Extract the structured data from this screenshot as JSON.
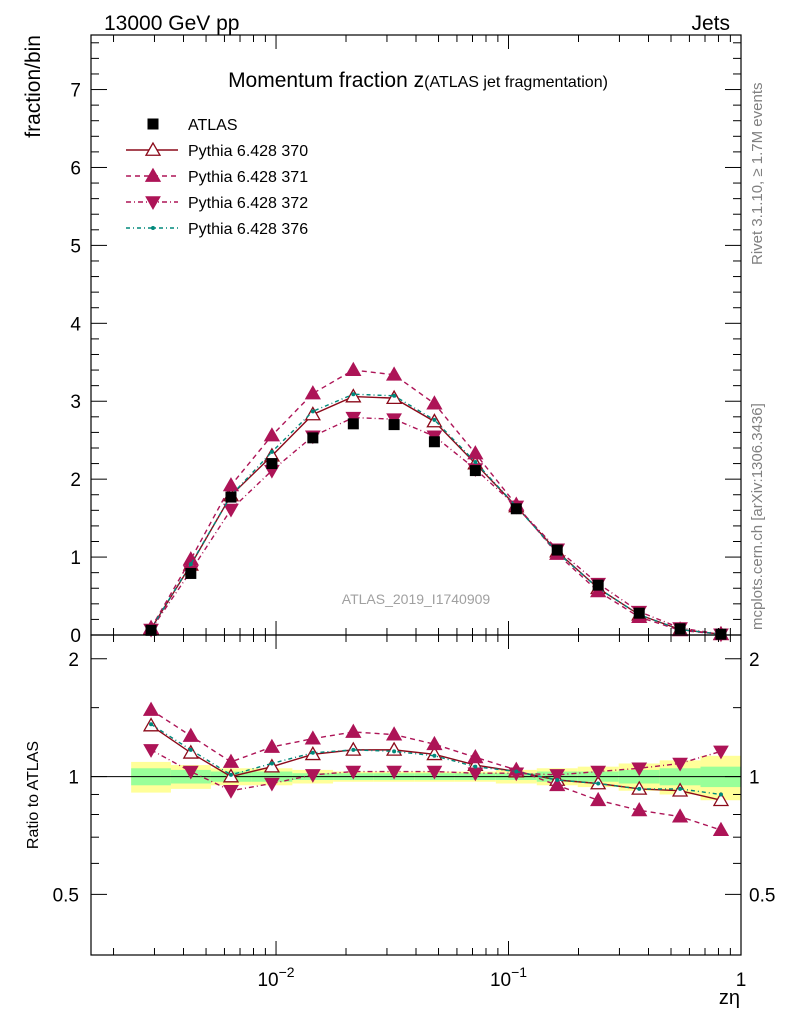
{
  "header": {
    "left": "13000 GeV pp",
    "right": "Jets"
  },
  "side": {
    "rivet": "Rivet 3.1.10, ≥ 1.7M events",
    "mcplots": "mcplots.cern.ch [arXiv:1306.3436]"
  },
  "chart_data": {
    "type": "line",
    "title_main": "Momentum fraction z",
    "title_sub": "(ATLAS jet fragmentation)",
    "watermark": "ATLAS_2019_I1740909",
    "xlabel": "zη",
    "ylabel": "fraction/bin",
    "ratio_ylabel": "Ratio to ATLAS",
    "xscale": "log",
    "xlim": [
      0.0016,
      1.0
    ],
    "ylim": [
      0,
      7.7
    ],
    "ratio_ylim": [
      0.35,
      2.3
    ],
    "legend_position": "top-left",
    "grid": false,
    "x_ticks": [
      {
        "value": 0.01,
        "base": "10",
        "exp": "−2"
      },
      {
        "value": 0.1,
        "base": "10",
        "exp": "−1"
      },
      {
        "value": 1,
        "base": "1",
        "exp": ""
      }
    ],
    "y_ticks": [
      "0",
      "1",
      "2",
      "3",
      "4",
      "5",
      "6",
      "7"
    ],
    "ratio_ticks": [
      "0.5",
      "1",
      "2"
    ],
    "x": [
      0.0029,
      0.0043,
      0.0064,
      0.0096,
      0.0144,
      0.0215,
      0.0322,
      0.048,
      0.072,
      0.108,
      0.162,
      0.243,
      0.365,
      0.547,
      0.82
    ],
    "series": [
      {
        "name": "ATLAS",
        "kind": "data",
        "color": "#000000",
        "values": [
          0.06,
          0.79,
          1.77,
          2.2,
          2.53,
          2.71,
          2.7,
          2.48,
          2.11,
          1.62,
          1.09,
          0.64,
          0.28,
          0.08,
          0.01
        ],
        "ratio": [
          1.0,
          1.0,
          1.0,
          1.0,
          1.0,
          1.0,
          1.0,
          1.0,
          1.0,
          1.0,
          1.0,
          1.0,
          1.0,
          1.0,
          1.0
        ]
      },
      {
        "name": "Pythia 6.428 370",
        "kind": "mc",
        "color": "#8b0a1a",
        "dash": "",
        "marker": "triangle-up-open",
        "values": [
          0.08,
          0.9,
          1.79,
          2.3,
          2.83,
          3.06,
          3.04,
          2.74,
          2.2,
          1.65,
          1.07,
          0.6,
          0.26,
          0.07,
          0.01
        ],
        "ratio": [
          1.35,
          1.15,
          1.0,
          1.06,
          1.14,
          1.17,
          1.17,
          1.14,
          1.07,
          1.03,
          0.98,
          0.96,
          0.93,
          0.92,
          0.87
        ]
      },
      {
        "name": "Pythia 6.428 371",
        "kind": "mc",
        "color": "#ad1457",
        "dash": "5,4",
        "marker": "triangle-up",
        "values": [
          0.09,
          0.97,
          1.92,
          2.56,
          3.1,
          3.4,
          3.34,
          2.97,
          2.33,
          1.67,
          1.04,
          0.56,
          0.23,
          0.06,
          0.01
        ],
        "ratio": [
          1.48,
          1.27,
          1.09,
          1.19,
          1.25,
          1.3,
          1.28,
          1.21,
          1.12,
          1.04,
          0.95,
          0.87,
          0.82,
          0.79,
          0.73
        ]
      },
      {
        "name": "Pythia 6.428 372",
        "kind": "mc",
        "color": "#ad1457",
        "dash": "5,3,1,3",
        "marker": "triangle-down",
        "values": [
          0.07,
          0.82,
          1.61,
          2.11,
          2.55,
          2.79,
          2.77,
          2.55,
          2.13,
          1.65,
          1.1,
          0.66,
          0.3,
          0.09,
          0.01
        ],
        "ratio": [
          1.17,
          1.03,
          0.92,
          0.96,
          1.01,
          1.03,
          1.03,
          1.03,
          1.02,
          1.02,
          1.01,
          1.03,
          1.05,
          1.08,
          1.16
        ]
      },
      {
        "name": "Pythia 6.428 376",
        "kind": "mc",
        "color": "#00897b",
        "dash": "4,3,1,3",
        "marker": "dot",
        "values": [
          0.08,
          0.91,
          1.79,
          2.35,
          2.87,
          3.09,
          3.07,
          2.76,
          2.22,
          1.65,
          1.06,
          0.6,
          0.26,
          0.07,
          0.01
        ],
        "ratio": [
          1.36,
          1.17,
          1.01,
          1.08,
          1.15,
          1.17,
          1.16,
          1.13,
          1.06,
          1.03,
          0.98,
          0.96,
          0.93,
          0.93,
          0.9
        ]
      }
    ],
    "ratio_band_green": [
      0.05,
      0.04,
      0.03,
      0.03,
      0.02,
      0.02,
      0.02,
      0.02,
      0.02,
      0.02,
      0.03,
      0.03,
      0.04,
      0.05,
      0.06
    ],
    "ratio_band_yellow": [
      0.09,
      0.07,
      0.05,
      0.05,
      0.04,
      0.03,
      0.03,
      0.03,
      0.03,
      0.04,
      0.05,
      0.06,
      0.08,
      0.1,
      0.13
    ]
  }
}
